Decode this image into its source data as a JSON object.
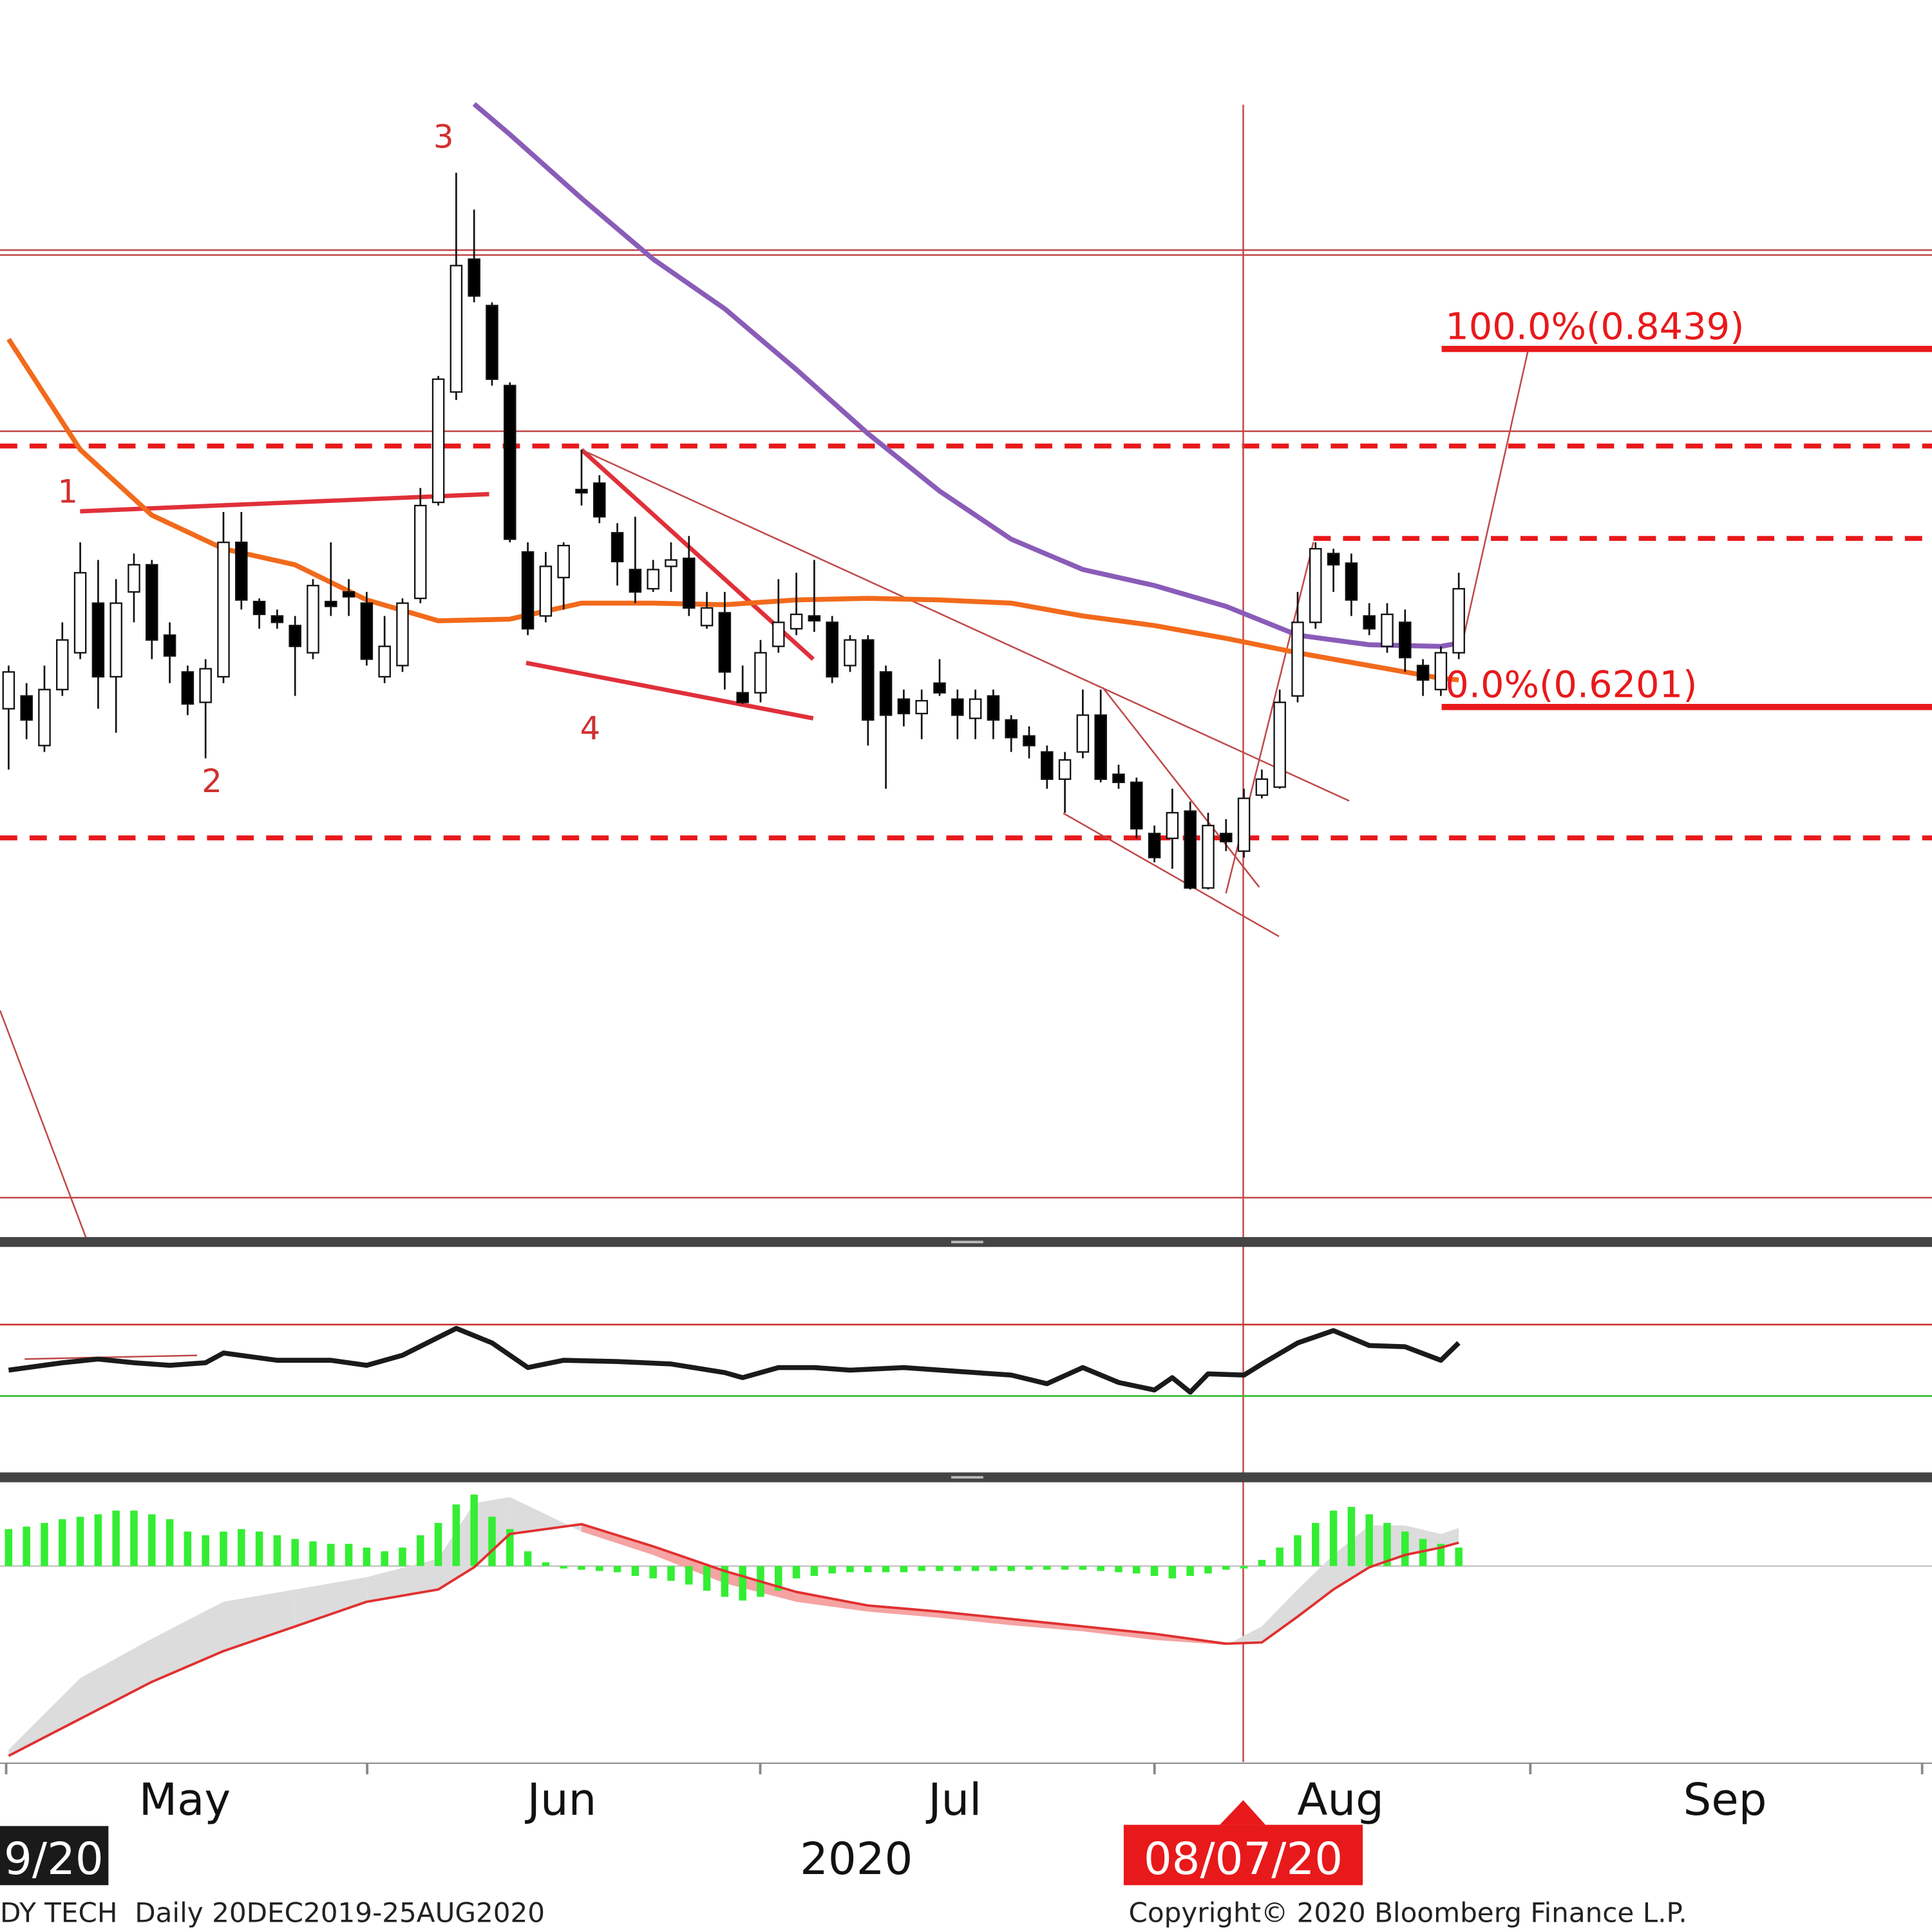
{
  "chart_data": [
    {
      "type": "candlestick",
      "ylim": [
        0.288,
        1.062
      ],
      "up_color": "#ffffff",
      "down_color": "#000000",
      "open": [
        0.619,
        0.627,
        0.596,
        0.631,
        0.654,
        0.685,
        0.639,
        0.692,
        0.709,
        0.665,
        0.642,
        0.623,
        0.639,
        0.723,
        0.686,
        0.677,
        0.671,
        0.654,
        0.686,
        0.692,
        0.685,
        0.639,
        0.646,
        0.688,
        0.748,
        0.817,
        0.9,
        0.871,
        0.821,
        0.717,
        0.677,
        0.701,
        0.756,
        0.76,
        0.729,
        0.706,
        0.694,
        0.708,
        0.713,
        0.671,
        0.679,
        0.629,
        0.629,
        0.658,
        0.669,
        0.677,
        0.673,
        0.646,
        0.662,
        0.642,
        0.625,
        0.616,
        0.635,
        0.625,
        0.613,
        0.627,
        0.612,
        0.602,
        0.592,
        0.575,
        0.592,
        0.615,
        0.578,
        0.573,
        0.541,
        0.538,
        0.555,
        0.507,
        0.541,
        0.53,
        0.565,
        0.57,
        0.627,
        0.673,
        0.716,
        0.71,
        0.677,
        0.658,
        0.673,
        0.646,
        0.631,
        0.654
      ],
      "high": [
        0.646,
        0.635,
        0.646,
        0.673,
        0.723,
        0.712,
        0.7,
        0.716,
        0.712,
        0.673,
        0.646,
        0.65,
        0.742,
        0.742,
        0.688,
        0.681,
        0.677,
        0.7,
        0.723,
        0.7,
        0.692,
        0.677,
        0.688,
        0.757,
        0.827,
        0.954,
        0.931,
        0.873,
        0.823,
        0.723,
        0.717,
        0.723,
        0.781,
        0.765,
        0.735,
        0.739,
        0.712,
        0.723,
        0.727,
        0.692,
        0.692,
        0.646,
        0.662,
        0.7,
        0.704,
        0.712,
        0.677,
        0.665,
        0.665,
        0.646,
        0.631,
        0.631,
        0.65,
        0.631,
        0.631,
        0.631,
        0.615,
        0.608,
        0.596,
        0.592,
        0.631,
        0.631,
        0.584,
        0.576,
        0.546,
        0.569,
        0.561,
        0.554,
        0.55,
        0.569,
        0.581,
        0.631,
        0.692,
        0.723,
        0.719,
        0.716,
        0.685,
        0.685,
        0.681,
        0.65,
        0.658,
        0.704
      ],
      "low": [
        0.581,
        0.6,
        0.592,
        0.627,
        0.65,
        0.619,
        0.604,
        0.673,
        0.65,
        0.635,
        0.615,
        0.588,
        0.635,
        0.681,
        0.669,
        0.669,
        0.627,
        0.65,
        0.677,
        0.677,
        0.646,
        0.635,
        0.642,
        0.685,
        0.746,
        0.812,
        0.873,
        0.821,
        0.723,
        0.665,
        0.673,
        0.681,
        0.746,
        0.735,
        0.696,
        0.685,
        0.692,
        0.692,
        0.677,
        0.669,
        0.631,
        0.622,
        0.623,
        0.654,
        0.665,
        0.667,
        0.635,
        0.642,
        0.596,
        0.569,
        0.608,
        0.6,
        0.627,
        0.6,
        0.6,
        0.6,
        0.592,
        0.588,
        0.569,
        0.554,
        0.588,
        0.573,
        0.569,
        0.538,
        0.523,
        0.519,
        0.506,
        0.506,
        0.53,
        0.526,
        0.563,
        0.569,
        0.623,
        0.669,
        0.692,
        0.677,
        0.665,
        0.654,
        0.642,
        0.627,
        0.627,
        0.65
      ],
      "close": [
        0.642,
        0.612,
        0.631,
        0.662,
        0.704,
        0.639,
        0.685,
        0.709,
        0.662,
        0.652,
        0.622,
        0.644,
        0.723,
        0.687,
        0.678,
        0.673,
        0.658,
        0.696,
        0.683,
        0.689,
        0.65,
        0.658,
        0.685,
        0.746,
        0.825,
        0.896,
        0.877,
        0.825,
        0.725,
        0.669,
        0.708,
        0.721,
        0.754,
        0.739,
        0.711,
        0.692,
        0.706,
        0.712,
        0.682,
        0.682,
        0.642,
        0.623,
        0.654,
        0.673,
        0.678,
        0.674,
        0.639,
        0.662,
        0.612,
        0.615,
        0.616,
        0.624,
        0.629,
        0.615,
        0.625,
        0.612,
        0.601,
        0.596,
        0.575,
        0.587,
        0.615,
        0.575,
        0.573,
        0.544,
        0.526,
        0.554,
        0.507,
        0.546,
        0.536,
        0.563,
        0.575,
        0.623,
        0.673,
        0.719,
        0.709,
        0.687,
        0.669,
        0.678,
        0.651,
        0.637,
        0.654,
        0.694
      ],
      "lines": [
        {
          "color": "#f26a1b",
          "x": [
            0,
            4,
            8,
            12,
            16,
            20,
            24,
            28,
            32,
            36,
            40,
            44,
            48,
            52,
            56,
            60,
            64,
            68,
            72,
            76,
            80,
            81
          ],
          "values": [
            0.85,
            0.781,
            0.74,
            0.719,
            0.709,
            0.687,
            0.674,
            0.675,
            0.685,
            0.685,
            0.684,
            0.687,
            0.688,
            0.687,
            0.685,
            0.677,
            0.671,
            0.663,
            0.654,
            0.646,
            0.638,
            0.637
          ]
        },
        {
          "color": "#8a5cb8",
          "x": [
            26,
            28,
            32,
            36,
            40,
            44,
            48,
            52,
            56,
            60,
            64,
            68,
            72,
            76,
            80,
            81
          ],
          "values": [
            0.997,
            0.978,
            0.938,
            0.9,
            0.869,
            0.831,
            0.791,
            0.755,
            0.725,
            0.706,
            0.696,
            0.683,
            0.665,
            0.659,
            0.658,
            0.66
          ]
        }
      ],
      "fib_levels": [
        {
          "value": 0.8439,
          "label": "100.0%(0.8439)"
        },
        {
          "value": 0.6201,
          "label": "0.0%(0.6201)"
        }
      ],
      "fib_color": "#e8191b",
      "annotations": [
        "1",
        "2",
        "3",
        "4"
      ],
      "x_labels": [
        "May",
        "Jun",
        "Jul",
        "Aug",
        "Sep"
      ],
      "year_label": "2020",
      "cursor_label": "08/07/20",
      "start_label": "9/20"
    },
    {
      "type": "line",
      "ylim": [
        -12.8,
        112.8
      ],
      "color": "#1a1a1a",
      "x": [
        0,
        3,
        5,
        7,
        9,
        11,
        12,
        15,
        18,
        20,
        22,
        25,
        27,
        29,
        31,
        34,
        37,
        40,
        41,
        43,
        45,
        47,
        50,
        53,
        56,
        58,
        60,
        62,
        64,
        65,
        66,
        67,
        69,
        70,
        72,
        74,
        76,
        78,
        80,
        81
      ],
      "values": [
        44.5,
        48.6,
        50.7,
        48.6,
        47.2,
        48.6,
        54.1,
        50,
        50,
        47.2,
        52.8,
        67.9,
        59.7,
        45.9,
        50,
        49.3,
        47.9,
        43.1,
        40.3,
        45.9,
        45.9,
        44.5,
        45.9,
        43.8,
        41.7,
        36.9,
        45.9,
        37.6,
        33.4,
        40.3,
        32.1,
        42.4,
        41.7,
        47.9,
        59.7,
        66.6,
        58.3,
        57.6,
        50,
        59.7
      ],
      "levels": [
        {
          "value": 70,
          "color": "#cc3333"
        },
        {
          "value": 30,
          "color": "#33bb33"
        }
      ]
    },
    {
      "type": "macd",
      "ylim": [
        -1.59,
        0.68
      ],
      "hist_color": "#33ee33",
      "signal_color": "#e03030",
      "histogram": [
        0.3,
        0.32,
        0.35,
        0.38,
        0.4,
        0.42,
        0.45,
        0.45,
        0.42,
        0.38,
        0.28,
        0.25,
        0.28,
        0.3,
        0.28,
        0.25,
        0.22,
        0.2,
        0.18,
        0.18,
        0.15,
        0.12,
        0.15,
        0.25,
        0.35,
        0.5,
        0.58,
        0.4,
        0.3,
        0.12,
        0.03,
        -0.02,
        -0.03,
        -0.04,
        -0.05,
        -0.08,
        -0.1,
        -0.12,
        -0.15,
        -0.2,
        -0.25,
        -0.28,
        -0.25,
        -0.2,
        -0.1,
        -0.08,
        -0.06,
        -0.05,
        -0.05,
        -0.05,
        -0.05,
        -0.04,
        -0.04,
        -0.04,
        -0.04,
        -0.04,
        -0.04,
        -0.03,
        -0.03,
        -0.03,
        -0.03,
        -0.04,
        -0.05,
        -0.06,
        -0.08,
        -0.1,
        -0.08,
        -0.06,
        -0.03,
        -0.02,
        0.05,
        0.15,
        0.25,
        0.35,
        0.45,
        0.48,
        0.42,
        0.35,
        0.28,
        0.22,
        0.18,
        0.15
      ],
      "x": [
        0,
        4,
        8,
        12,
        16,
        20,
        24,
        26,
        28,
        32,
        36,
        40,
        44,
        48,
        52,
        56,
        60,
        64,
        68,
        70,
        72,
        74,
        76,
        78,
        80,
        81
      ],
      "macd": [
        -1.49,
        -0.91,
        -0.59,
        -0.29,
        -0.19,
        -0.09,
        0.06,
        0.51,
        0.56,
        0.28,
        0.09,
        -0.14,
        -0.29,
        -0.37,
        -0.42,
        -0.48,
        -0.53,
        -0.6,
        -0.64,
        -0.49,
        -0.19,
        0.09,
        0.33,
        0.33,
        0.26,
        0.31
      ],
      "signal": [
        -1.54,
        -1.24,
        -0.94,
        -0.69,
        -0.49,
        -0.29,
        -0.19,
        -0.01,
        0.26,
        0.34,
        0.16,
        -0.04,
        -0.21,
        -0.32,
        -0.37,
        -0.43,
        -0.49,
        -0.55,
        -0.63,
        -0.62,
        -0.41,
        -0.19,
        -0.01,
        0.09,
        0.15,
        0.19
      ]
    }
  ],
  "footer": {
    "left": "DY TECH  Daily 20DEC2019-25AUG2020",
    "right": "Copyright© 2020 Bloomberg Finance L.P."
  }
}
